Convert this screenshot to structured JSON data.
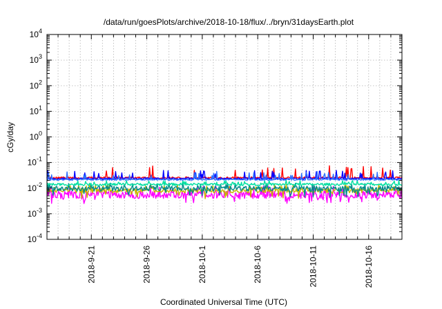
{
  "chart_data": {
    "type": "line",
    "title": "/data/run/goesPlots/archive/2018-10-18/flux/../bryn/31daysEarth.plot",
    "xlabel": "Coordinated Universal Time (UTC)",
    "ylabel": "cGy/day",
    "yscale": "log",
    "ylim": [
      0.0001,
      10000
    ],
    "xlim": [
      "2018-09-17",
      "2018-10-19"
    ],
    "grid": true,
    "legend": "none",
    "y_ticks": [
      {
        "value": 0.0001,
        "base": "10",
        "exp": "-4"
      },
      {
        "value": 0.001,
        "base": "10",
        "exp": "-3"
      },
      {
        "value": 0.01,
        "base": "10",
        "exp": "-2"
      },
      {
        "value": 0.1,
        "base": "10",
        "exp": "-1"
      },
      {
        "value": 1,
        "base": "10",
        "exp": "0"
      },
      {
        "value": 10,
        "base": "10",
        "exp": "1"
      },
      {
        "value": 100,
        "base": "10",
        "exp": "2"
      },
      {
        "value": 1000,
        "base": "10",
        "exp": "3"
      },
      {
        "value": 10000,
        "base": "10",
        "exp": "4"
      }
    ],
    "x_ticks": [
      {
        "date": "2018-09-21",
        "label": "2018-9-21"
      },
      {
        "date": "2018-09-26",
        "label": "2018-9-26"
      },
      {
        "date": "2018-10-01",
        "label": "2018-10-1"
      },
      {
        "date": "2018-10-06",
        "label": "2018-10-6"
      },
      {
        "date": "2018-10-11",
        "label": "2018-10-11"
      },
      {
        "date": "2018-10-16",
        "label": "2018-10-16"
      }
    ],
    "series": [
      {
        "color": "#ff00ff",
        "base": 0.0055,
        "spread": 0.3,
        "spike_max": 0.0125
      },
      {
        "color": "#c8b400",
        "base": 0.008,
        "spread": 0.18,
        "spike_max": 0.014
      },
      {
        "color": "#008b8b",
        "base": 0.0095,
        "spread": 0.2,
        "spike_max": 0.016
      },
      {
        "color": "#00e0a0",
        "base": 0.014,
        "spread": 0.1,
        "spike_max": 0.02
      },
      {
        "color": "#ff0000",
        "base": 0.0255,
        "spread": 0.07,
        "spike_max": 0.075
      },
      {
        "color": "#0000ff",
        "base": 0.0235,
        "spread": 0.07,
        "spike_max": 0.05
      },
      {
        "color": "#3070ff",
        "base": 0.0215,
        "spread": 0.06,
        "spike_max": 0.045
      }
    ]
  }
}
